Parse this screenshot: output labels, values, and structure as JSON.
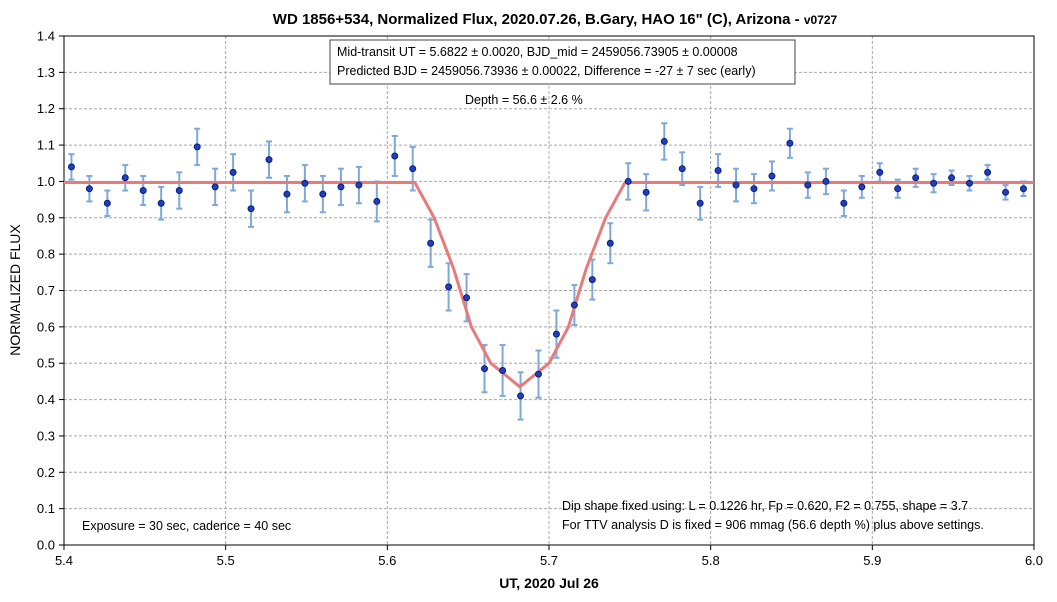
{
  "chart_data": {
    "type": "scatter",
    "title": "WD 1856+534, Normalized Flux, 2020.07.26, B.Gary, HAO 16\" (C), Arizona - ",
    "title_suffix": "v0727",
    "xlabel": "UT, 2020 Jul 26",
    "ylabel": "NORMALIZED FLUX",
    "xlim": [
      5.4,
      6.0
    ],
    "ylim": [
      0.0,
      1.4
    ],
    "x_ticks": [
      "5.4",
      "5.5",
      "5.6",
      "5.7",
      "5.8",
      "5.9",
      "6.0"
    ],
    "y_ticks": [
      "0.0",
      "0.1",
      "0.2",
      "0.3",
      "0.4",
      "0.5",
      "0.6",
      "0.7",
      "0.8",
      "0.9",
      "1.0",
      "1.1",
      "1.2",
      "1.3",
      "1.4"
    ],
    "grid": true,
    "colors": {
      "points": "#1f3fbf",
      "point_edge": "#0a1f7a",
      "error_bars": "#7fa8d8",
      "model": "#e87a7a"
    },
    "series": [
      {
        "type": "scatter",
        "x": [
          5.4046,
          5.4157,
          5.4268,
          5.4379,
          5.449,
          5.4601,
          5.4713,
          5.4824,
          5.4935,
          5.5046,
          5.5157,
          5.5268,
          5.5379,
          5.549,
          5.5601,
          5.5713,
          5.5824,
          5.5935,
          5.6046,
          5.6157,
          5.6268,
          5.6379,
          5.649,
          5.6601,
          5.6713,
          5.6824,
          5.6935,
          5.7046,
          5.7157,
          5.7268,
          5.7379,
          5.749,
          5.7601,
          5.7713,
          5.7824,
          5.7935,
          5.8046,
          5.8157,
          5.8268,
          5.8379,
          5.849,
          5.8601,
          5.8713,
          5.8824,
          5.8935,
          5.9046,
          5.9157,
          5.9268,
          5.9379,
          5.949,
          5.9601,
          5.9713,
          5.9824,
          5.9935
        ],
        "values": [
          1.04,
          0.98,
          0.94,
          1.01,
          0.975,
          0.94,
          0.975,
          1.095,
          0.985,
          1.025,
          0.925,
          1.06,
          0.965,
          0.995,
          0.965,
          0.985,
          0.99,
          0.945,
          1.07,
          1.035,
          0.83,
          0.71,
          0.68,
          0.485,
          0.48,
          0.41,
          0.47,
          0.58,
          0.66,
          0.73,
          0.83,
          1.0,
          0.97,
          1.11,
          1.035,
          0.94,
          1.03,
          0.99,
          0.98,
          1.015,
          1.105,
          0.99,
          1.0,
          0.94,
          0.985,
          1.025,
          0.98,
          1.01,
          0.995,
          1.01,
          0.995,
          1.025,
          0.97,
          0.98
        ],
        "errors": [
          0.035,
          0.035,
          0.035,
          0.035,
          0.04,
          0.045,
          0.05,
          0.05,
          0.05,
          0.05,
          0.05,
          0.05,
          0.05,
          0.05,
          0.05,
          0.05,
          0.05,
          0.055,
          0.055,
          0.06,
          0.065,
          0.065,
          0.065,
          0.065,
          0.07,
          0.065,
          0.065,
          0.065,
          0.055,
          0.055,
          0.055,
          0.05,
          0.05,
          0.05,
          0.045,
          0.045,
          0.045,
          0.045,
          0.04,
          0.04,
          0.04,
          0.035,
          0.035,
          0.035,
          0.03,
          0.025,
          0.025,
          0.025,
          0.025,
          0.02,
          0.02,
          0.02,
          0.02,
          0.02
        ]
      },
      {
        "type": "line",
        "x": [
          5.4,
          5.617,
          5.629,
          5.641,
          5.652,
          5.664,
          5.682,
          5.7,
          5.712,
          5.723,
          5.735,
          5.747,
          6.0
        ],
        "values": [
          0.997,
          0.997,
          0.9,
          0.76,
          0.6,
          0.5,
          0.435,
          0.5,
          0.6,
          0.76,
          0.9,
          0.997,
          0.997
        ]
      }
    ],
    "annotations": {
      "box_line1": "Mid-transit UT = 5.6822 ± 0.0020, BJD_mid = 2459056.73905 ± 0.00008",
      "box_line2": "Predicted BJD = 2459056.73936 ± 0.00022, Difference = -27 ± 7 sec (early)",
      "depth": "Depth = 56.6 ± 2.6 %",
      "exposure": "Exposure = 30 sec, cadence = 40 sec",
      "dip_line1": "Dip shape fixed using:  L = 0.1226 hr, Fp = 0.620, F2 = 0.755, shape = 3.7",
      "dip_line2": "For TTV analysis D is fixed = 906 mmag (56.6 depth %) plus above settings."
    }
  }
}
